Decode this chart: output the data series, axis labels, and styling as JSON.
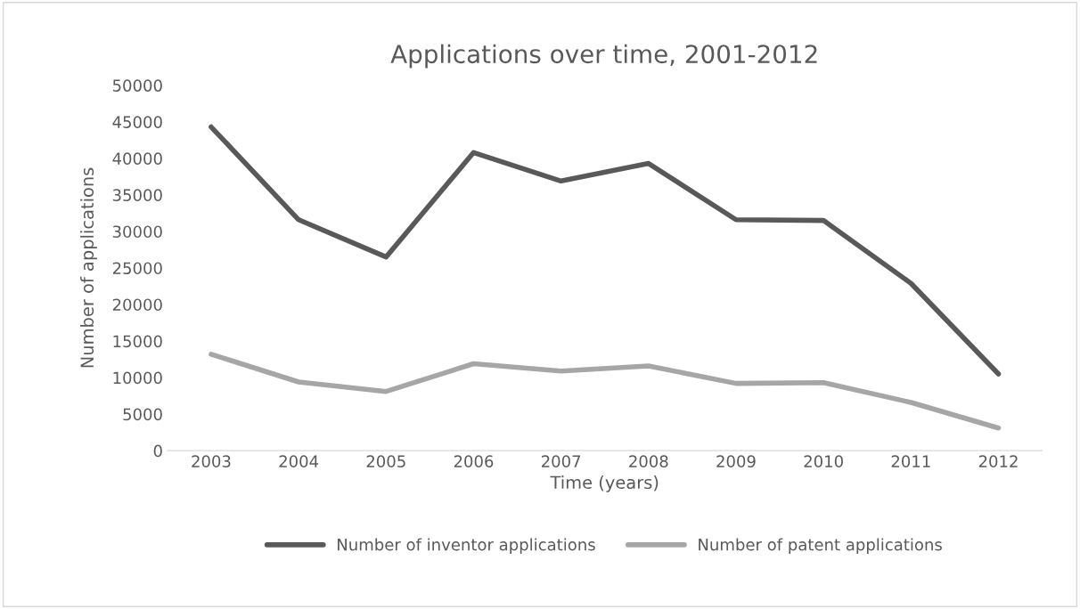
{
  "chart_data": {
    "type": "line",
    "title": "Applications over time, 2001-2012",
    "xlabel": "Time (years)",
    "ylabel": "Number of applications",
    "categories": [
      "2003",
      "2004",
      "2005",
      "2006",
      "2007",
      "2008",
      "2009",
      "2010",
      "2011",
      "2012"
    ],
    "series": [
      {
        "name": "Number of inventor applications",
        "color": "#595959",
        "values": [
          44300,
          31600,
          26500,
          40800,
          36900,
          39300,
          31600,
          31500,
          22900,
          10500
        ]
      },
      {
        "name": "Number of patent applications",
        "color": "#a6a6a6",
        "values": [
          13200,
          9400,
          8100,
          11900,
          10900,
          11600,
          9200,
          9300,
          6600,
          3100
        ]
      }
    ],
    "ylim": [
      0,
      50000
    ],
    "yticks": [
      0,
      5000,
      10000,
      15000,
      20000,
      25000,
      30000,
      35000,
      40000,
      45000,
      50000
    ],
    "grid": false,
    "legend": "bottom",
    "marker": "none",
    "line_style": "solid"
  }
}
